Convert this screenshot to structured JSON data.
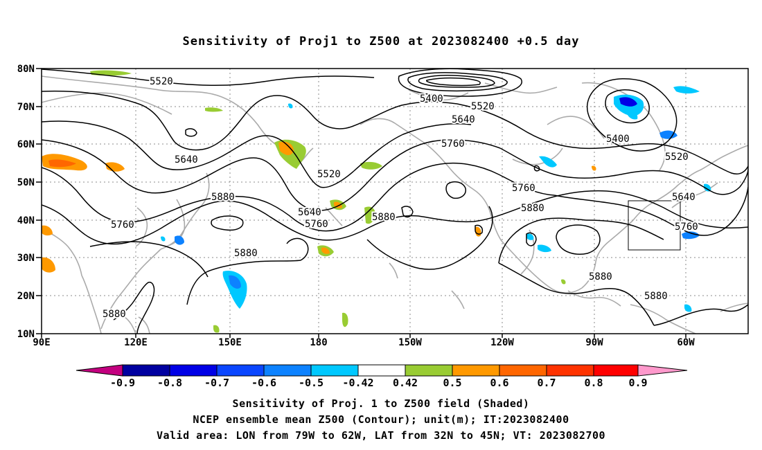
{
  "title": "Sensitivity of Proj1 to Z500 at 2023082400 +0.5 day",
  "map": {
    "lat_labels": [
      "80N",
      "70N",
      "60N",
      "50N",
      "40N",
      "30N",
      "20N",
      "10N"
    ],
    "lon_labels": [
      "90E",
      "120E",
      "150E",
      "180",
      "150W",
      "120W",
      "90W",
      "60W"
    ],
    "extent": {
      "lon": [
        "90E",
        "45W"
      ],
      "lat": [
        "10N",
        "80N"
      ]
    },
    "grid": "dotted",
    "validation_box": {
      "lon": [
        "79W",
        "62W"
      ],
      "lat": [
        "32N",
        "45N"
      ]
    },
    "contour_labels": [
      "5520",
      "5400",
      "5520",
      "5640",
      "5760",
      "5640",
      "5520",
      "5400",
      "5520",
      "5880",
      "5760",
      "5640",
      "5760",
      "5880",
      "5760",
      "5880",
      "5640",
      "5760",
      "5880",
      "5880",
      "5880",
      "5880"
    ],
    "colors": {
      "coast": "#aaaaaa",
      "contour": "#000000",
      "box": "#000000",
      "grid": "#888888"
    }
  },
  "colorbar": {
    "tick_labels": [
      "-0.9",
      "-0.8",
      "-0.7",
      "-0.6",
      "-0.5",
      "-0.42",
      "0.42",
      "0.5",
      "0.6",
      "0.7",
      "0.8",
      "0.9"
    ],
    "colors": [
      "#c3007f",
      "#0000a0",
      "#0000e6",
      "#0a46ff",
      "#0d82ff",
      "#00c8ff",
      "#ffffff",
      "#99cc33",
      "#ff9900",
      "#ff6600",
      "#ff3300",
      "#ff0000",
      "#ff99cc"
    ]
  },
  "captions": {
    "line1": "Sensitivity of Proj. 1 to Z500 field (Shaded)",
    "line2": "NCEP ensemble mean Z500 (Contour); unit(m); IT:2023082400",
    "line3": "Valid area: LON from 79W to 62W, LAT from 32N to 45N; VT: 2023082700"
  }
}
